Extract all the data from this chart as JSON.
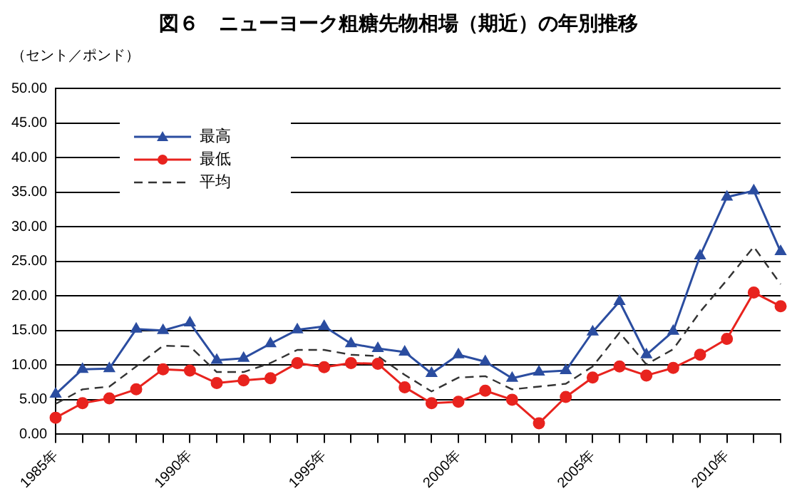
{
  "chart_data": {
    "type": "line",
    "title": "図６　ニューヨーク粗糖先物相場（期近）の年別推移",
    "ylabel": "（セント／ポンド）",
    "categories": [
      "1985年",
      null,
      null,
      null,
      null,
      "1990年",
      null,
      null,
      null,
      null,
      "1995年",
      null,
      null,
      null,
      null,
      "2000年",
      null,
      null,
      null,
      null,
      "2005年",
      null,
      null,
      null,
      null,
      "2010年",
      null,
      null
    ],
    "series": [
      {
        "name": "最高",
        "color": "#2b4da0",
        "marker": "triangle",
        "line_style": "solid",
        "values": [
          5.8,
          9.4,
          9.5,
          15.2,
          15.0,
          16.1,
          10.7,
          11.0,
          13.1,
          15.1,
          15.6,
          13.1,
          12.4,
          11.9,
          8.8,
          11.5,
          10.5,
          8.1,
          9.0,
          9.2,
          14.8,
          19.2,
          11.5,
          14.9,
          25.8,
          34.3,
          35.2,
          26.4
        ]
      },
      {
        "name": "最低",
        "color": "#e8231e",
        "marker": "circle",
        "line_style": "solid",
        "values": [
          2.4,
          4.5,
          5.2,
          6.5,
          9.4,
          9.2,
          7.4,
          7.8,
          8.1,
          10.3,
          9.7,
          10.3,
          10.2,
          6.8,
          4.5,
          4.7,
          6.3,
          5.0,
          1.6,
          5.4,
          8.2,
          9.8,
          8.5,
          9.6,
          11.5,
          13.8,
          20.5,
          18.5
        ]
      },
      {
        "name": "平均",
        "color": "#333333",
        "marker": "none",
        "line_style": "dashed",
        "values": [
          4.4,
          6.5,
          6.9,
          9.8,
          12.8,
          12.7,
          9.0,
          9.0,
          10.3,
          12.2,
          12.2,
          11.5,
          11.3,
          8.6,
          6.2,
          8.2,
          8.4,
          6.5,
          6.9,
          7.3,
          9.8,
          14.7,
          10.1,
          12.3,
          17.7,
          22.3,
          27.1,
          21.7
        ]
      }
    ],
    "ylim": [
      0,
      50
    ],
    "yticks": [
      {
        "value": 0,
        "label": "0.00"
      },
      {
        "value": 5,
        "label": "5.00"
      },
      {
        "value": 10,
        "label": "10.00"
      },
      {
        "value": 15,
        "label": "15.00"
      },
      {
        "value": 20,
        "label": "20.00"
      },
      {
        "value": 25,
        "label": "25.00"
      },
      {
        "value": 30,
        "label": "30.00"
      },
      {
        "value": 35,
        "label": "35.00"
      },
      {
        "value": 40,
        "label": "40.00"
      },
      {
        "value": 45,
        "label": "45.00"
      },
      {
        "value": 50,
        "label": "50.00"
      }
    ],
    "grid": "y",
    "legend": "top left"
  }
}
